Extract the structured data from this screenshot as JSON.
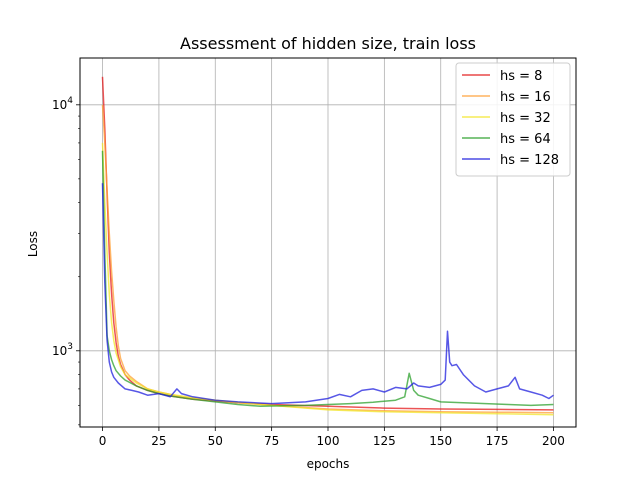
{
  "chart_data": {
    "type": "line",
    "title": "Assessment of hidden size, train loss",
    "xlabel": "epochs",
    "ylabel": "Loss",
    "xlim": [
      -10,
      210
    ],
    "ylim": [
      490,
      15500
    ],
    "yscale": "log",
    "xticks": [
      0,
      25,
      50,
      75,
      100,
      125,
      150,
      175,
      200
    ],
    "xtick_labels": [
      "0",
      "25",
      "50",
      "75",
      "100",
      "125",
      "150",
      "175",
      "200"
    ],
    "yticks": [
      1000,
      10000
    ],
    "ytick_labels": [
      "10^3",
      "10^4"
    ],
    "grid": true,
    "legend_position": "top-right",
    "series": [
      {
        "name": "hs = 8",
        "color": "#e41a1c",
        "x": [
          0,
          1,
          2,
          3,
          4,
          5,
          6,
          7,
          8,
          10,
          12,
          15,
          20,
          25,
          30,
          35,
          40,
          50,
          60,
          75,
          100,
          125,
          150,
          175,
          200
        ],
        "y": [
          13000,
          8000,
          4300,
          2500,
          1700,
          1300,
          1080,
          950,
          880,
          800,
          760,
          720,
          690,
          670,
          655,
          645,
          635,
          625,
          615,
          605,
          595,
          585,
          580,
          578,
          575
        ]
      },
      {
        "name": "hs = 16",
        "color": "#ffa037",
        "x": [
          0,
          1,
          2,
          3,
          4,
          5,
          6,
          7,
          8,
          10,
          12,
          15,
          17,
          20,
          25,
          30,
          35,
          40,
          50,
          60,
          75,
          100,
          125,
          150,
          175,
          200
        ],
        "y": [
          10000,
          7000,
          4500,
          3000,
          2100,
          1600,
          1250,
          1050,
          930,
          830,
          790,
          750,
          730,
          700,
          680,
          665,
          650,
          640,
          630,
          615,
          600,
          580,
          570,
          565,
          563,
          560
        ]
      },
      {
        "name": "hs = 32",
        "color": "#f2e52a",
        "x": [
          0,
          1,
          2,
          3,
          4,
          5,
          6,
          8,
          10,
          15,
          20,
          25,
          30,
          40,
          50,
          75,
          100,
          125,
          150,
          175,
          200
        ],
        "y": [
          7000,
          4000,
          2500,
          1700,
          1300,
          1100,
          980,
          860,
          800,
          740,
          700,
          680,
          665,
          645,
          630,
          600,
          575,
          565,
          560,
          555,
          550
        ]
      },
      {
        "name": "hs = 64",
        "color": "#2ca02c",
        "x": [
          0,
          1,
          2,
          3,
          4,
          5,
          6,
          8,
          10,
          15,
          20,
          25,
          30,
          40,
          50,
          60,
          70,
          80,
          90,
          100,
          110,
          120,
          130,
          134,
          136,
          138,
          140,
          145,
          150,
          160,
          170,
          180,
          190,
          200
        ],
        "y": [
          6500,
          2500,
          1150,
          1000,
          920,
          870,
          830,
          790,
          760,
          720,
          690,
          670,
          655,
          635,
          620,
          605,
          595,
          598,
          600,
          605,
          610,
          618,
          630,
          650,
          810,
          690,
          660,
          640,
          620,
          615,
          610,
          605,
          600,
          605
        ]
      },
      {
        "name": "hs = 128",
        "color": "#1f1fdd",
        "x": [
          0,
          1,
          2,
          3,
          4,
          5,
          7,
          10,
          13,
          16,
          20,
          25,
          30,
          33,
          35,
          40,
          45,
          50,
          60,
          75,
          90,
          100,
          105,
          110,
          115,
          120,
          125,
          130,
          135,
          138,
          140,
          145,
          150,
          152,
          153,
          154,
          155,
          157,
          160,
          165,
          170,
          175,
          180,
          183,
          185,
          190,
          195,
          198,
          200
        ],
        "y": [
          4800,
          1900,
          1100,
          900,
          820,
          780,
          740,
          700,
          690,
          680,
          660,
          670,
          650,
          700,
          670,
          650,
          640,
          630,
          620,
          610,
          620,
          640,
          665,
          650,
          690,
          700,
          680,
          710,
          700,
          740,
          720,
          710,
          730,
          760,
          1200,
          900,
          870,
          880,
          800,
          720,
          680,
          700,
          720,
          780,
          700,
          680,
          660,
          640,
          660
        ]
      }
    ]
  }
}
